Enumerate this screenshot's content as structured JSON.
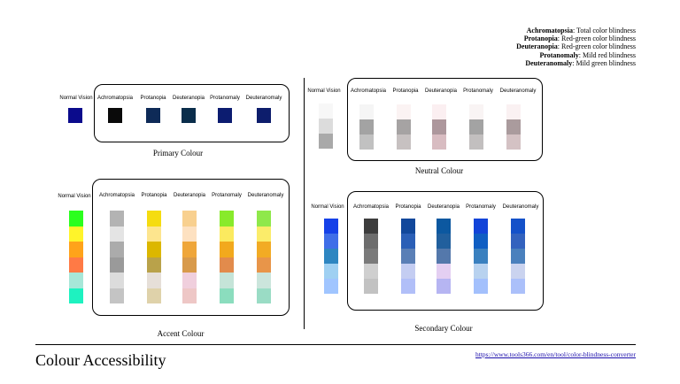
{
  "legend": [
    {
      "term": "Achromatopsia",
      "desc": "Total color blindness"
    },
    {
      "term": "Protanopia",
      "desc": "Red-green color blindness"
    },
    {
      "term": "Deuteranopia",
      "desc": "Red-green color blindness"
    },
    {
      "term": "Protanomaly",
      "desc": "Mild red blindness"
    },
    {
      "term": "Deuteranomaly",
      "desc": "Mild green blindness"
    }
  ],
  "headers": [
    "Normal Vision",
    "Achromatopsia",
    "Protanopia",
    "Deuteranopia",
    "Protanomaly",
    "Deuteranomaly"
  ],
  "panels": {
    "primary": {
      "title": "Primary Colour",
      "columns": [
        [
          "#0b0b8c"
        ],
        [
          "#0a0a0a"
        ],
        [
          "#0e2a57"
        ],
        [
          "#0a2d4b"
        ],
        [
          "#0c1c70"
        ],
        [
          "#0d1d6c"
        ]
      ]
    },
    "neutral": {
      "title": "Neutral Colour",
      "columns": [
        [
          "#f7f7f7",
          "#dcdcdc",
          "#a9a9a9"
        ],
        [
          "#f5f5f5",
          "#a3a3a3",
          "#c1c1c1"
        ],
        [
          "#fbf3f3",
          "#a6a3a3",
          "#c7c1c1"
        ],
        [
          "#fbeff1",
          "#ad979c",
          "#d8bcc1"
        ],
        [
          "#f9f4f4",
          "#a3a3a3",
          "#c2bfbf"
        ],
        [
          "#faf1f2",
          "#aa9b9d",
          "#d4c2c4"
        ]
      ]
    },
    "accent": {
      "title": "Accent Colour",
      "columns": [
        [
          "#2bff1e",
          "#fff42a",
          "#ffa31a",
          "#ff7a45",
          "#a7e7d8",
          "#1ef2c0"
        ],
        [
          "#b3b3b3",
          "#e4e4e4",
          "#ababab",
          "#9a9a9a",
          "#dcdcdc",
          "#c4c4c4"
        ],
        [
          "#f5dc10",
          "#fde58e",
          "#dcb700",
          "#b9a24a",
          "#e6dfd8",
          "#dfd2aa"
        ],
        [
          "#f8d08f",
          "#fde1c1",
          "#efa63a",
          "#d89a4b",
          "#f0cfdd",
          "#eec7c6"
        ],
        [
          "#88ea2b",
          "#fbea5f",
          "#f2a91d",
          "#e28b4c",
          "#c5e4d8",
          "#8bddbe"
        ],
        [
          "#8fe84b",
          "#fbec6a",
          "#f2ab24",
          "#e89549",
          "#cbe5dc",
          "#9adcc5"
        ]
      ]
    },
    "secondary": {
      "title": "Secondary Colour",
      "columns": [
        [
          "#1541e8",
          "#3f6ee8",
          "#2e86c1",
          "#9fd0f2",
          "#a0c5ff"
        ],
        [
          "#3d3d3d",
          "#6d6d6d",
          "#7a7a7a",
          "#cfcfcf",
          "#c2c2c2"
        ],
        [
          "#12489b",
          "#2b5fb6",
          "#5a7fb6",
          "#c4cdf2",
          "#b1bff8"
        ],
        [
          "#0c58a0",
          "#215f9d",
          "#5478ab",
          "#e4cff2",
          "#b6b5f2"
        ],
        [
          "#1244d8",
          "#0f5ec3",
          "#3a80bf",
          "#b8d2ef",
          "#a3c0fc"
        ],
        [
          "#1451c9",
          "#3362be",
          "#4a80bd",
          "#cad3ef",
          "#abc0fa"
        ]
      ]
    }
  },
  "footer": {
    "title": "Colour Accessibility",
    "link": "https://www.tools366.com/en/tool/color-blindness-converter"
  }
}
